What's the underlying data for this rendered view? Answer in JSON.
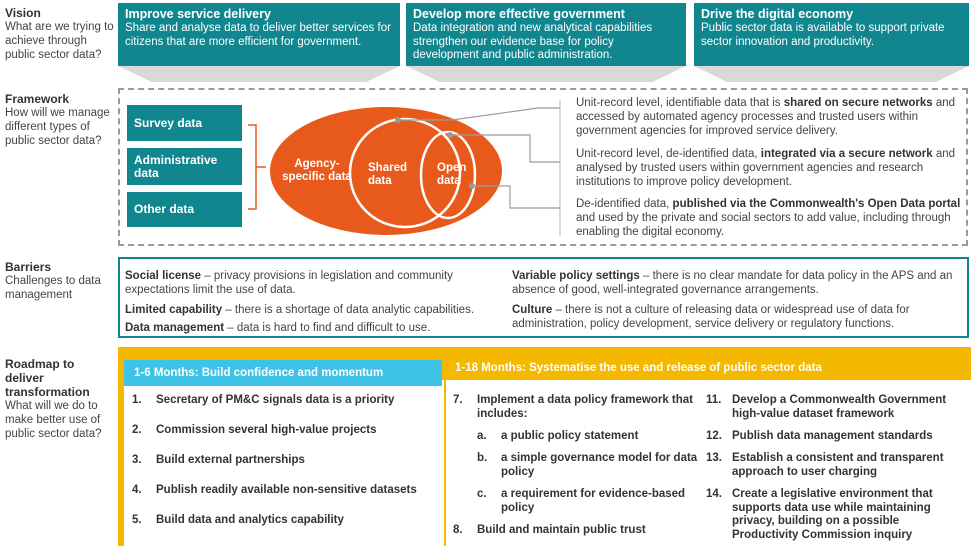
{
  "sidebar": {
    "vision": {
      "title": "Vision",
      "sub": "What are we trying to achieve through public sector data?"
    },
    "framework": {
      "title": "Framework",
      "sub": "How will we manage different types of public sector data?"
    },
    "barriers": {
      "title": "Barriers",
      "sub": "Challenges to data management"
    },
    "roadmap": {
      "title": "Roadmap to deliver transformation",
      "sub": "What will we do to make better use of public sector data?"
    }
  },
  "vision": [
    {
      "title": "Improve service delivery",
      "text": "Share and analyse data to deliver better services for citizens that are more efficient for government."
    },
    {
      "title": "Develop more effective government",
      "text": "Data integration and new analytical capabilities strengthen our evidence base for policy development and public administration."
    },
    {
      "title": "Drive the digital economy",
      "text": "Public sector data is available to support private sector innovation and productivity."
    }
  ],
  "framework": {
    "data_types": [
      "Survey data",
      "Administrative data",
      "Other data"
    ],
    "circles": {
      "agency": "Agency-specific data",
      "shared": "Shared data",
      "open": "Open data"
    },
    "descriptions": [
      {
        "pre": "Unit-record level, identifiable data that is ",
        "bold": "shared on secure networks",
        "post": " and accessed by automated agency processes and trusted users within government agencies for improved service delivery."
      },
      {
        "pre": "Unit-record level, de-identified data, ",
        "bold": "integrated via a secure network",
        "post": " and analysed by trusted users within government agencies and research institutions to improve policy development."
      },
      {
        "pre": "De-identified data, ",
        "bold": "published via the Commonwealth's Open Data portal",
        "post": " and used by the private and social sectors to add value, including through enabling the digital economy."
      }
    ]
  },
  "barriers": [
    {
      "bold": "Social license",
      "text": " – privacy provisions in legislation and community expectations limit the use of data."
    },
    {
      "bold": "Limited capability",
      "text": " – there is a shortage of data analytic capabilities."
    },
    {
      "bold": "Data management",
      "text": " – data is hard to find and difficult to use."
    },
    {
      "bold": "Variable policy settings",
      "text": " – there is no clear mandate for data policy in the APS and an absence of good, well-integrated governance arrangements."
    },
    {
      "bold": "Culture",
      "text": " – there is not a culture of releasing data or widespread use of data for administration, policy development, service delivery or regulatory functions."
    }
  ],
  "roadmap": {
    "phase1": {
      "title": "1-6 Months: Build confidence and momentum",
      "items": [
        {
          "n": "1.",
          "text": "Secretary of PM&C signals data is a priority"
        },
        {
          "n": "2.",
          "text": "Commission several high-value projects"
        },
        {
          "n": "3.",
          "text": "Build external partnerships"
        },
        {
          "n": "4.",
          "text": "Publish readily available non-sensitive datasets"
        },
        {
          "n": "5.",
          "text": "Build data and analytics capability"
        }
      ]
    },
    "phase2": {
      "title": "1-18 Months: Systematise the use and release of public sector data",
      "item7": {
        "n": "7.",
        "text": "Implement a data policy framework that includes:"
      },
      "sub": [
        {
          "n": "a.",
          "text": "a public policy statement"
        },
        {
          "n": "b.",
          "text": "a simple governance model for data policy"
        },
        {
          "n": "c.",
          "text": "a requirement for evidence-based policy"
        }
      ],
      "item8": {
        "n": "8.",
        "text": "Build and maintain public trust"
      },
      "right": [
        {
          "n": "11.",
          "text": "Develop a Commonwealth Government high-value dataset framework"
        },
        {
          "n": "12.",
          "text": "Publish data management standards"
        },
        {
          "n": "13.",
          "text": "Establish a consistent and transparent approach to user charging"
        },
        {
          "n": "14.",
          "text": "Create a legislative environment that supports data use while maintaining privacy, building on a possible Productivity Commission inquiry"
        }
      ]
    }
  },
  "colors": {
    "teal": "#11868f",
    "orange": "#e85a1c",
    "yellow": "#f5b800",
    "cyan": "#3ec3e6"
  }
}
